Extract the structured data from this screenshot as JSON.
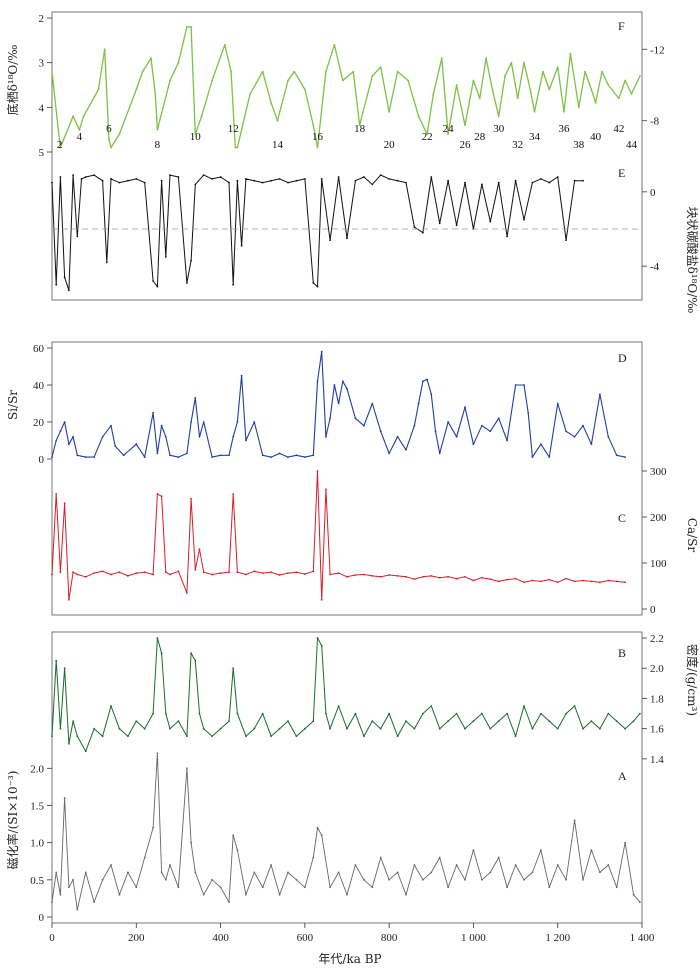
{
  "figure": {
    "x_axis_label": "年代/ka BP",
    "x_ticks": [
      0,
      200,
      400,
      600,
      800,
      1000,
      1200,
      1400
    ],
    "x_tick_labels": [
      "0",
      "200",
      "400",
      "600",
      "800",
      "1 000",
      "1 200",
      "1 400"
    ]
  },
  "chart_data": [
    {
      "panel": "F",
      "type": "line",
      "color": "#7cc242",
      "ylabel": "底栖δ¹⁸O/‰",
      "yticks_left": [
        "2",
        "3",
        "4",
        "5"
      ],
      "ylim_left": [
        5,
        2
      ],
      "yticks_right": [
        "-12",
        "-8"
      ],
      "marine_isotope_stage_labels": [
        "2",
        "4",
        "6",
        "8",
        "10",
        "12",
        "14",
        "16",
        "18",
        "20",
        "22",
        "24",
        "26",
        "28",
        "30",
        "32",
        "34",
        "36",
        "38",
        "40",
        "42",
        "44"
      ],
      "stage_ages_ka": [
        18,
        65,
        135,
        250,
        340,
        430,
        535,
        630,
        730,
        800,
        890,
        940,
        980,
        1015,
        1060,
        1105,
        1145,
        1215,
        1250,
        1290,
        1345,
        1375
      ],
      "x": [
        0,
        15,
        20,
        50,
        65,
        75,
        110,
        125,
        135,
        140,
        160,
        200,
        215,
        235,
        245,
        250,
        280,
        300,
        320,
        330,
        340,
        355,
        380,
        410,
        425,
        435,
        440,
        470,
        500,
        520,
        535,
        560,
        575,
        600,
        620,
        630,
        650,
        670,
        690,
        715,
        730,
        760,
        780,
        800,
        820,
        845,
        870,
        890,
        905,
        925,
        940,
        960,
        980,
        1000,
        1015,
        1030,
        1045,
        1060,
        1075,
        1090,
        1105,
        1120,
        1135,
        1145,
        1165,
        1180,
        1200,
        1215,
        1230,
        1250,
        1265,
        1280,
        1290,
        1305,
        1320,
        1345,
        1360,
        1375,
        1395
      ],
      "y": [
        3.2,
        4.5,
        4.9,
        4.2,
        4.5,
        4.2,
        3.6,
        2.7,
        4.7,
        4.9,
        4.6,
        3.6,
        3.2,
        2.9,
        3.7,
        4.5,
        3.4,
        3.0,
        2.2,
        2.2,
        4.6,
        4.2,
        3.4,
        2.6,
        3.2,
        4.9,
        4.9,
        3.7,
        3.2,
        3.9,
        4.3,
        3.4,
        3.2,
        3.6,
        4.4,
        4.9,
        3.2,
        2.6,
        3.4,
        3.2,
        4.4,
        3.3,
        3.1,
        4.1,
        3.2,
        3.4,
        4.2,
        4.6,
        3.7,
        2.9,
        4.6,
        3.5,
        4.4,
        3.4,
        3.8,
        2.9,
        3.6,
        4.2,
        3.3,
        3.0,
        3.8,
        3.0,
        3.6,
        4.1,
        3.2,
        3.6,
        3.1,
        4.1,
        2.8,
        4.0,
        3.2,
        3.6,
        3.9,
        3.2,
        3.5,
        3.8,
        3.4,
        3.7,
        3.3
      ]
    },
    {
      "panel": "E",
      "type": "line",
      "color": "#111111",
      "ylabel": "块状碳酸盐δ¹⁸O/‰",
      "yticks_right": [
        "-4",
        "0"
      ],
      "ylim": [
        -5.5,
        1.5
      ],
      "reference_line": -2,
      "x": [
        0,
        10,
        20,
        30,
        40,
        50,
        60,
        70,
        80,
        100,
        120,
        130,
        140,
        160,
        180,
        200,
        220,
        240,
        250,
        260,
        270,
        280,
        300,
        320,
        330,
        340,
        360,
        380,
        400,
        420,
        430,
        440,
        450,
        460,
        480,
        500,
        520,
        540,
        560,
        580,
        600,
        620,
        630,
        640,
        660,
        680,
        700,
        720,
        740,
        760,
        780,
        800,
        820,
        840,
        860,
        880,
        900,
        920,
        940,
        960,
        980,
        1000,
        1020,
        1040,
        1060,
        1080,
        1100,
        1120,
        1140,
        1160,
        1180,
        1200,
        1220,
        1240,
        1260
      ],
      "y": [
        0.5,
        -5.0,
        0.8,
        -4.6,
        -5.3,
        0.9,
        -2.4,
        0.7,
        0.8,
        0.9,
        0.6,
        -3.8,
        0.7,
        0.5,
        0.6,
        0.7,
        0.5,
        -4.8,
        -5.1,
        0.6,
        -3.5,
        0.9,
        0.8,
        -4.9,
        -3.7,
        0.4,
        0.9,
        0.7,
        0.8,
        0.5,
        -5.0,
        0.6,
        -2.9,
        0.7,
        0.6,
        0.5,
        0.6,
        0.7,
        0.5,
        0.6,
        0.7,
        -4.9,
        -5.1,
        0.7,
        -2.6,
        0.8,
        -2.5,
        0.6,
        0.8,
        0.4,
        0.9,
        0.7,
        0.6,
        0.5,
        -1.9,
        -2.2,
        0.8,
        -1.7,
        0.6,
        -1.8,
        0.5,
        -2.0,
        0.4,
        -1.6,
        0.5,
        -2.4,
        0.6,
        -1.5,
        0.5,
        0.7,
        0.5,
        0.8,
        -2.6,
        0.6,
        0.6
      ]
    },
    {
      "panel": "D",
      "type": "line",
      "color": "#1f3f9f",
      "ylabel": "Si/Sr",
      "yticks_left": [
        "0",
        "20",
        "40",
        "60"
      ],
      "ylim_left": [
        0,
        60
      ],
      "x": [
        0,
        10,
        20,
        30,
        40,
        50,
        60,
        80,
        100,
        120,
        140,
        150,
        170,
        200,
        220,
        240,
        250,
        260,
        270,
        280,
        300,
        320,
        330,
        340,
        350,
        360,
        380,
        400,
        420,
        430,
        440,
        450,
        460,
        480,
        500,
        520,
        540,
        560,
        580,
        600,
        620,
        630,
        640,
        650,
        660,
        670,
        680,
        690,
        700,
        720,
        740,
        760,
        780,
        800,
        820,
        840,
        860,
        870,
        880,
        890,
        900,
        910,
        920,
        940,
        960,
        980,
        1000,
        1020,
        1040,
        1060,
        1080,
        1100,
        1120,
        1130,
        1140,
        1160,
        1180,
        1200,
        1220,
        1240,
        1260,
        1280,
        1300,
        1320,
        1340,
        1360
      ],
      "y": [
        1,
        10,
        15,
        20,
        8,
        12,
        2,
        1,
        1,
        12,
        18,
        7,
        2,
        8,
        1,
        25,
        3,
        18,
        12,
        2,
        1,
        3,
        20,
        33,
        12,
        20,
        1,
        2,
        2,
        12,
        20,
        45,
        10,
        20,
        2,
        1,
        3,
        1,
        2,
        1,
        2,
        42,
        58,
        12,
        22,
        40,
        30,
        42,
        38,
        22,
        18,
        30,
        15,
        3,
        12,
        5,
        18,
        30,
        42,
        43,
        35,
        15,
        3,
        20,
        12,
        28,
        8,
        18,
        15,
        22,
        10,
        40,
        40,
        25,
        1,
        8,
        1,
        30,
        15,
        12,
        18,
        8,
        35,
        12,
        2,
        1
      ]
    },
    {
      "panel": "C",
      "type": "line",
      "color": "#d71f27",
      "ylabel": "Ca/Sr",
      "yticks_right": [
        "0",
        "100",
        "200",
        "300"
      ],
      "ylim_right": [
        0,
        300
      ],
      "x": [
        0,
        10,
        20,
        30,
        40,
        50,
        60,
        80,
        100,
        120,
        140,
        160,
        180,
        200,
        220,
        240,
        250,
        260,
        270,
        280,
        300,
        320,
        330,
        340,
        350,
        360,
        380,
        400,
        420,
        430,
        440,
        460,
        480,
        500,
        520,
        540,
        560,
        580,
        600,
        620,
        630,
        640,
        650,
        660,
        680,
        700,
        720,
        740,
        760,
        780,
        800,
        820,
        840,
        860,
        880,
        900,
        920,
        940,
        960,
        980,
        1000,
        1020,
        1040,
        1060,
        1080,
        1100,
        1120,
        1140,
        1160,
        1180,
        1200,
        1220,
        1240,
        1260,
        1280,
        1300,
        1320,
        1340,
        1360
      ],
      "y": [
        75,
        250,
        80,
        230,
        20,
        80,
        75,
        70,
        78,
        82,
        75,
        80,
        72,
        78,
        80,
        75,
        250,
        245,
        80,
        75,
        82,
        35,
        240,
        85,
        130,
        80,
        75,
        78,
        80,
        250,
        80,
        75,
        82,
        78,
        80,
        74,
        78,
        80,
        76,
        82,
        300,
        20,
        260,
        75,
        78,
        70,
        74,
        75,
        72,
        70,
        74,
        72,
        70,
        65,
        70,
        72,
        68,
        70,
        66,
        70,
        62,
        68,
        65,
        60,
        64,
        66,
        58,
        62,
        60,
        64,
        58,
        66,
        60,
        62,
        60,
        58,
        62,
        60,
        58
      ]
    },
    {
      "panel": "B",
      "type": "line",
      "color": "#1a6b2c",
      "ylabel": "密度/(g/cm³)",
      "yticks_right": [
        "1.4",
        "1.6",
        "1.8",
        "2.0",
        "2.2"
      ],
      "ylim_right": [
        1.3,
        2.2
      ],
      "x": [
        0,
        10,
        20,
        30,
        40,
        50,
        60,
        80,
        100,
        120,
        140,
        160,
        180,
        200,
        220,
        240,
        250,
        260,
        270,
        280,
        300,
        320,
        330,
        340,
        350,
        360,
        380,
        400,
        420,
        430,
        440,
        460,
        480,
        500,
        520,
        540,
        560,
        580,
        600,
        620,
        630,
        640,
        650,
        660,
        680,
        700,
        720,
        740,
        760,
        780,
        800,
        820,
        840,
        860,
        880,
        900,
        920,
        940,
        960,
        980,
        1000,
        1020,
        1040,
        1060,
        1080,
        1100,
        1120,
        1140,
        1160,
        1180,
        1200,
        1220,
        1240,
        1260,
        1280,
        1300,
        1320,
        1340,
        1360,
        1380,
        1395
      ],
      "y": [
        1.55,
        2.05,
        1.6,
        2.0,
        1.5,
        1.65,
        1.55,
        1.45,
        1.6,
        1.55,
        1.75,
        1.6,
        1.55,
        1.65,
        1.6,
        1.7,
        2.2,
        2.1,
        1.7,
        1.6,
        1.65,
        1.55,
        2.1,
        2.05,
        1.7,
        1.6,
        1.55,
        1.6,
        1.65,
        2.0,
        1.7,
        1.55,
        1.6,
        1.7,
        1.55,
        1.6,
        1.65,
        1.55,
        1.6,
        1.65,
        2.2,
        2.15,
        1.7,
        1.6,
        1.75,
        1.6,
        1.7,
        1.55,
        1.65,
        1.6,
        1.7,
        1.55,
        1.65,
        1.6,
        1.7,
        1.75,
        1.6,
        1.65,
        1.7,
        1.6,
        1.65,
        1.7,
        1.6,
        1.65,
        1.7,
        1.55,
        1.75,
        1.6,
        1.7,
        1.65,
        1.6,
        1.7,
        1.75,
        1.6,
        1.65,
        1.6,
        1.7,
        1.65,
        1.6,
        1.65,
        1.7
      ]
    },
    {
      "panel": "A",
      "type": "line",
      "color": "#666666",
      "ylabel": "磁化率/(SI×10⁻³)",
      "yticks_left": [
        "0",
        "0.5",
        "1.0",
        "1.5",
        "2.0"
      ],
      "ylim_left": [
        0,
        2.3
      ],
      "x": [
        0,
        10,
        20,
        30,
        40,
        50,
        60,
        80,
        100,
        120,
        140,
        160,
        180,
        200,
        220,
        240,
        250,
        260,
        270,
        280,
        300,
        320,
        330,
        340,
        360,
        380,
        400,
        420,
        430,
        440,
        460,
        480,
        500,
        520,
        540,
        560,
        580,
        600,
        620,
        630,
        640,
        660,
        680,
        700,
        720,
        740,
        760,
        780,
        800,
        820,
        840,
        860,
        880,
        900,
        920,
        940,
        960,
        980,
        1000,
        1020,
        1040,
        1060,
        1080,
        1100,
        1120,
        1140,
        1160,
        1180,
        1200,
        1220,
        1240,
        1260,
        1280,
        1300,
        1320,
        1340,
        1360,
        1380,
        1395
      ],
      "y": [
        0.2,
        0.6,
        0.3,
        1.6,
        0.4,
        0.5,
        0.1,
        0.6,
        0.2,
        0.5,
        0.7,
        0.3,
        0.6,
        0.4,
        0.8,
        1.2,
        2.2,
        0.6,
        0.5,
        0.7,
        0.4,
        2.0,
        1.0,
        0.6,
        0.3,
        0.5,
        0.4,
        0.2,
        1.1,
        0.9,
        0.3,
        0.6,
        0.4,
        0.7,
        0.3,
        0.6,
        0.5,
        0.4,
        0.8,
        1.2,
        1.1,
        0.4,
        0.6,
        0.3,
        0.7,
        0.5,
        0.4,
        0.8,
        0.5,
        0.6,
        0.3,
        0.7,
        0.5,
        0.6,
        0.8,
        0.4,
        0.7,
        0.5,
        0.9,
        0.5,
        0.6,
        0.8,
        0.4,
        0.7,
        0.5,
        0.6,
        0.9,
        0.4,
        0.7,
        0.5,
        1.3,
        0.5,
        0.9,
        0.6,
        0.7,
        0.4,
        1.0,
        0.3,
        0.2
      ]
    }
  ]
}
